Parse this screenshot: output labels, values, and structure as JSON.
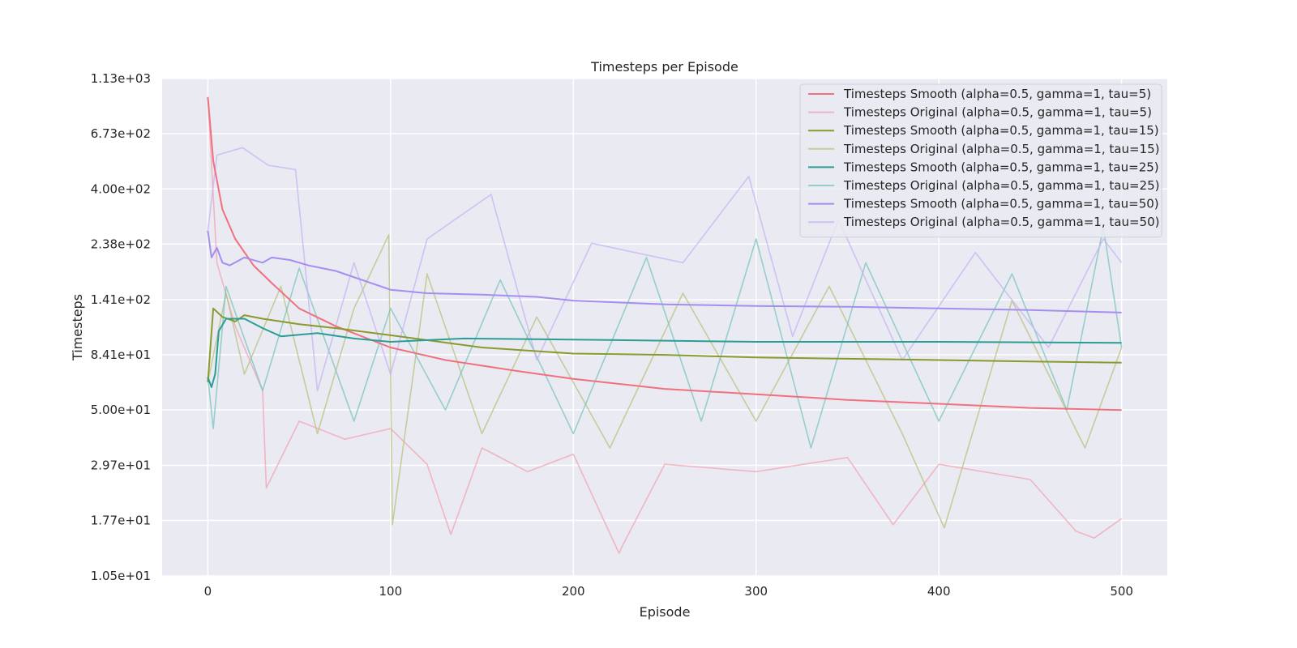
{
  "chart_data": {
    "type": "line",
    "title": "Timesteps per Episode",
    "xlabel": "Episode",
    "ylabel": "Timesteps",
    "xlim": [
      -25,
      525
    ],
    "ylim": [
      10.5,
      1130
    ],
    "yscale": "log",
    "grid": true,
    "legend_position": "top-right",
    "x_ticks": [
      0,
      100,
      200,
      300,
      400,
      500
    ],
    "x_tick_labels": [
      "0",
      "100",
      "200",
      "300",
      "400",
      "500"
    ],
    "y_ticks": [
      10.5,
      17.7,
      29.7,
      50.0,
      84.1,
      141,
      238,
      400,
      673,
      1130
    ],
    "y_tick_labels": [
      "1.05e+01",
      "1.77e+01",
      "2.97e+01",
      "5.00e+01",
      "8.41e+01",
      "1.41e+02",
      "2.38e+02",
      "4.00e+02",
      "6.73e+02",
      "1.13e+03"
    ],
    "series": [
      {
        "name": "Timesteps Smooth (alpha=0.5, gamma=1, tau=5)",
        "color": "#f0707e",
        "kind": "smooth",
        "x": [
          0,
          3,
          8,
          15,
          25,
          35,
          50,
          70,
          100,
          130,
          170,
          200,
          250,
          300,
          350,
          400,
          450,
          500
        ],
        "values": [
          950,
          520,
          330,
          250,
          195,
          165,
          130,
          110,
          90,
          80,
          72,
          67,
          61,
          58,
          55,
          53,
          51,
          50
        ]
      },
      {
        "name": "Timesteps Original (alpha=0.5, gamma=1, tau=5)",
        "color": "#f2a3b3",
        "kind": "original",
        "x": [
          0,
          5,
          15,
          30,
          32,
          50,
          75,
          100,
          120,
          133,
          150,
          175,
          200,
          225,
          227,
          250,
          300,
          350,
          375,
          400,
          450,
          475,
          485,
          500
        ],
        "values": [
          950,
          200,
          110,
          60,
          24,
          45,
          38,
          42,
          30,
          15.5,
          35,
          28,
          33,
          13,
          14,
          30,
          28,
          32,
          17,
          30,
          26,
          16,
          15,
          18
        ]
      },
      {
        "name": "Timesteps Smooth (alpha=0.5, gamma=1, tau=15)",
        "color": "#8a9a2c",
        "kind": "smooth",
        "x": [
          0,
          3,
          8,
          15,
          20,
          30,
          50,
          70,
          100,
          150,
          200,
          250,
          300,
          350,
          400,
          450,
          500
        ],
        "values": [
          65,
          130,
          120,
          115,
          122,
          118,
          112,
          108,
          101,
          90,
          85,
          84,
          82,
          81,
          80,
          79,
          78
        ]
      },
      {
        "name": "Timesteps Original (alpha=0.5, gamma=1, tau=15)",
        "color": "#b8c27f",
        "kind": "original",
        "x": [
          0,
          10,
          20,
          40,
          60,
          80,
          99,
          101,
          120,
          150,
          180,
          220,
          260,
          300,
          340,
          380,
          403,
          440,
          480,
          500
        ],
        "values": [
          65,
          150,
          70,
          160,
          40,
          130,
          260,
          17,
          180,
          40,
          120,
          35,
          150,
          45,
          160,
          40,
          16.5,
          140,
          35,
          90
        ]
      },
      {
        "name": "Timesteps Smooth (alpha=0.5, gamma=1, tau=25)",
        "color": "#2a9d94",
        "kind": "smooth",
        "x": [
          0,
          2,
          4,
          6,
          10,
          20,
          30,
          40,
          60,
          80,
          100,
          140,
          200,
          300,
          400,
          500
        ],
        "values": [
          68,
          62,
          70,
          105,
          118,
          118,
          108,
          100,
          103,
          98,
          95,
          98,
          97,
          95,
          95,
          94
        ]
      },
      {
        "name": "Timesteps Original (alpha=0.5, gamma=1, tau=25)",
        "color": "#79c4be",
        "kind": "original",
        "x": [
          0,
          3,
          10,
          30,
          50,
          80,
          100,
          130,
          160,
          200,
          240,
          270,
          300,
          330,
          360,
          400,
          440,
          470,
          490,
          500
        ],
        "values": [
          68,
          42,
          160,
          60,
          190,
          45,
          130,
          50,
          170,
          40,
          210,
          45,
          250,
          35,
          200,
          45,
          180,
          50,
          280,
          90
        ]
      },
      {
        "name": "Timesteps Smooth (alpha=0.5, gamma=1, tau=50)",
        "color": "#a58ef0",
        "kind": "smooth",
        "x": [
          0,
          2,
          5,
          8,
          12,
          20,
          30,
          35,
          45,
          55,
          70,
          100,
          120,
          150,
          180,
          200,
          250,
          300,
          350,
          400,
          450,
          500
        ],
        "values": [
          270,
          210,
          230,
          200,
          195,
          210,
          200,
          210,
          205,
          195,
          185,
          155,
          150,
          148,
          145,
          140,
          135,
          133,
          132,
          130,
          128,
          125
        ]
      },
      {
        "name": "Timesteps Original (alpha=0.5, gamma=1, tau=50)",
        "color": "#c4b3f3",
        "kind": "original",
        "x": [
          0,
          5,
          19,
          33,
          48,
          60,
          80,
          100,
          120,
          155,
          180,
          210,
          260,
          296,
          320,
          345,
          380,
          420,
          460,
          490,
          500
        ],
        "values": [
          270,
          550,
          590,
          500,
          480,
          60,
          200,
          70,
          250,
          380,
          80,
          240,
          200,
          450,
          100,
          300,
          80,
          220,
          90,
          250,
          200
        ]
      }
    ]
  }
}
